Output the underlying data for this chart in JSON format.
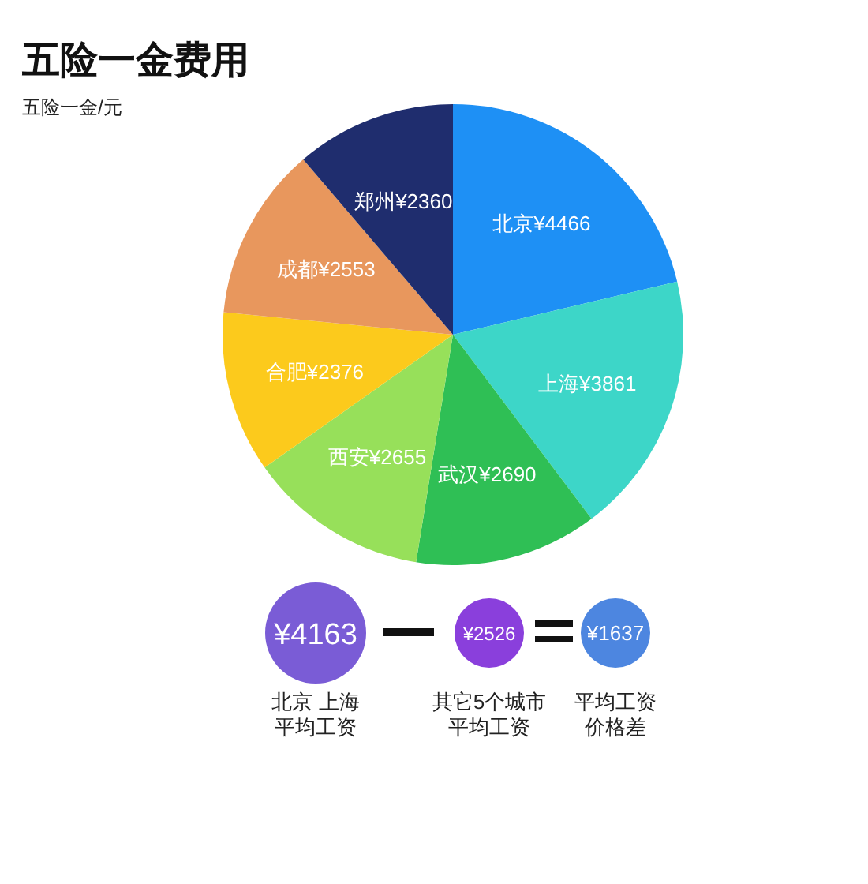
{
  "chart_data": {
    "type": "pie",
    "title": "五险一金费用",
    "subtitle": "五险一金/元",
    "categories": [
      "北京",
      "上海",
      "武汉",
      "西安",
      "合肥",
      "成都",
      "郑州"
    ],
    "values": [
      4466,
      3861,
      2690,
      2655,
      2376,
      2553,
      2360
    ],
    "value_labels": [
      "¥4466",
      "¥3861",
      "¥2690",
      "¥2655",
      "¥2376",
      "¥2553",
      "¥2360"
    ],
    "colors": [
      "#1e90f5",
      "#3dd6c8",
      "#2fbf55",
      "#97e05a",
      "#fcca1c",
      "#e8975d",
      "#1f2d6e"
    ],
    "annotations": [
      "¥4163",
      "北京 上海",
      "平均工资",
      "¥2526",
      "其它5个城市",
      "平均工资",
      "¥1637",
      "平均工资",
      "价格差"
    ]
  }
}
